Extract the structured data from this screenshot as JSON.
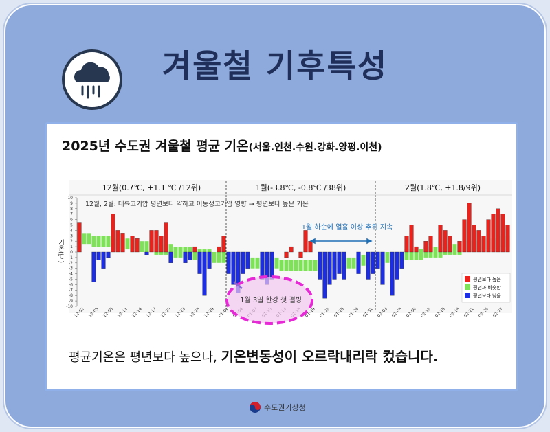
{
  "title": "겨울철 기후특성",
  "footer": "수도권기상청",
  "message": {
    "plain": "평균기온은 평년보다 높으나,",
    "bold": "기온변동성이 오르락내리락 컸습니다."
  },
  "chart_data": {
    "type": "bar",
    "title": "2025년 수도권 겨울철 평균 기온",
    "subtitle": "(서울.인천.수원.강화.양평.이천)",
    "ylabel": "기온(℃)",
    "month_labels": [
      "12월(0.7℃, +1.1 ℃ /12위)",
      "1월(-3.8℃, -0.8℃ /38위)",
      "2월(1.8℃, +1.8/9위)"
    ],
    "annotations": [
      "12월, 2월: 대륙고기압 평년보다 약하고 이동성고기압 영향 → 평년보다 높은 기온",
      "1월 하순에 열흘 이상 추위 지속",
      "1월 3일 한강 첫 결빙"
    ],
    "categories": [
      null,
      "12-02",
      null,
      null,
      "12-05",
      null,
      null,
      "12-08",
      null,
      null,
      "12-11",
      null,
      null,
      "12-14",
      null,
      null,
      "12-17",
      null,
      null,
      "12-20",
      null,
      null,
      "12-23",
      null,
      null,
      "12-26",
      null,
      null,
      "12-29",
      null,
      null,
      "01-01",
      null,
      null,
      "01-04",
      null,
      null,
      "01-07",
      null,
      null,
      "01-10",
      null,
      null,
      "01-13",
      null,
      null,
      "01-16",
      null,
      null,
      "01-19",
      null,
      null,
      "01-22",
      null,
      null,
      "01-25",
      null,
      null,
      "01-28",
      null,
      null,
      "01-31",
      null,
      null,
      "02-03",
      null,
      null,
      "02-06",
      null,
      null,
      "02-09",
      null,
      null,
      "02-12",
      null,
      null,
      "02-15",
      null,
      null,
      "02-18",
      null,
      null,
      "02-21",
      null,
      null,
      "02-24",
      null,
      null,
      "02-27",
      null
    ],
    "ylim": [
      -10,
      10
    ],
    "yticks": [
      -10,
      -9,
      -8,
      -7,
      -6,
      -5,
      -4,
      -3,
      -2,
      -1,
      0,
      1,
      2,
      3,
      4,
      5,
      6,
      7,
      8,
      9,
      10
    ],
    "legend": "lower right",
    "series": [
      {
        "name": "평년보다 높음",
        "color": "#e8231e",
        "values": [
          5.5,
          null,
          null,
          null,
          null,
          null,
          null,
          7,
          4,
          3.5,
          null,
          3,
          2.5,
          null,
          null,
          4,
          4,
          3,
          5.5,
          null,
          null,
          null,
          null,
          null,
          1,
          null,
          null,
          null,
          null,
          1,
          3,
          null,
          null,
          null,
          null,
          null,
          null,
          null,
          null,
          null,
          null,
          null,
          null,
          -1,
          1,
          null,
          -1,
          4,
          2,
          null,
          null,
          null,
          null,
          null,
          null,
          null,
          null,
          null,
          null,
          null,
          null,
          null,
          null,
          null,
          null,
          null,
          null,
          null,
          3,
          5,
          1,
          null,
          2,
          3,
          null,
          5,
          4,
          3,
          null,
          2,
          6,
          9,
          5,
          4,
          3,
          6,
          7,
          8,
          7,
          5
        ]
      },
      {
        "name": "평년과 비슷함",
        "color": "#7fe05a",
        "values": [
          2.5,
          2.5,
          2.5,
          2,
          2,
          2,
          2,
          2,
          1.5,
          1.5,
          1.5,
          1.5,
          1,
          1,
          1,
          1,
          0.5,
          0.5,
          0.5,
          0.5,
          0,
          0,
          0,
          0,
          -0.5,
          -0.5,
          -0.5,
          -0.5,
          -1,
          -1,
          -1,
          -1,
          -1.5,
          -1.5,
          -1.5,
          -1.5,
          -2,
          -2,
          -2,
          -2,
          -2,
          -2,
          -2.5,
          -2.5,
          -2.5,
          -2.5,
          -2.5,
          -2.5,
          -2.5,
          -2.5,
          -2.5,
          -2.5,
          -2,
          -2,
          -2,
          -2,
          -2,
          -2,
          -2,
          -1.5,
          -1.5,
          -1.5,
          -1.5,
          -1.5,
          -1,
          -1,
          -1,
          -1,
          -0.5,
          -0.5,
          -0.5,
          -0.5,
          0,
          0,
          0,
          0,
          0.5,
          0.5,
          0.5,
          0.5,
          1,
          1,
          1,
          1,
          1.5,
          1.5,
          1.5,
          2,
          2,
          2
        ]
      },
      {
        "name": "평년보다 낮음",
        "color": "#1c2ee0",
        "values": [
          null,
          null,
          null,
          -5.5,
          -1.5,
          -3,
          -1,
          null,
          null,
          null,
          null,
          null,
          null,
          null,
          -0.5,
          null,
          null,
          null,
          null,
          -2,
          null,
          null,
          -2,
          -1.5,
          null,
          -4,
          -8,
          -3,
          null,
          null,
          null,
          -4,
          -6,
          -7.5,
          -4,
          -3,
          null,
          null,
          -5,
          -6,
          -5,
          null,
          null,
          null,
          null,
          null,
          null,
          null,
          null,
          null,
          -5,
          -8.5,
          -6,
          -5,
          -4,
          -5,
          null,
          null,
          -4,
          null,
          -5,
          -4,
          -3,
          -6,
          null,
          -8,
          -5,
          -3,
          null,
          null,
          null,
          null,
          null,
          null,
          null,
          null,
          null,
          null,
          null,
          null,
          null,
          null,
          null,
          null,
          null,
          null,
          null,
          null,
          null,
          null
        ]
      }
    ]
  }
}
